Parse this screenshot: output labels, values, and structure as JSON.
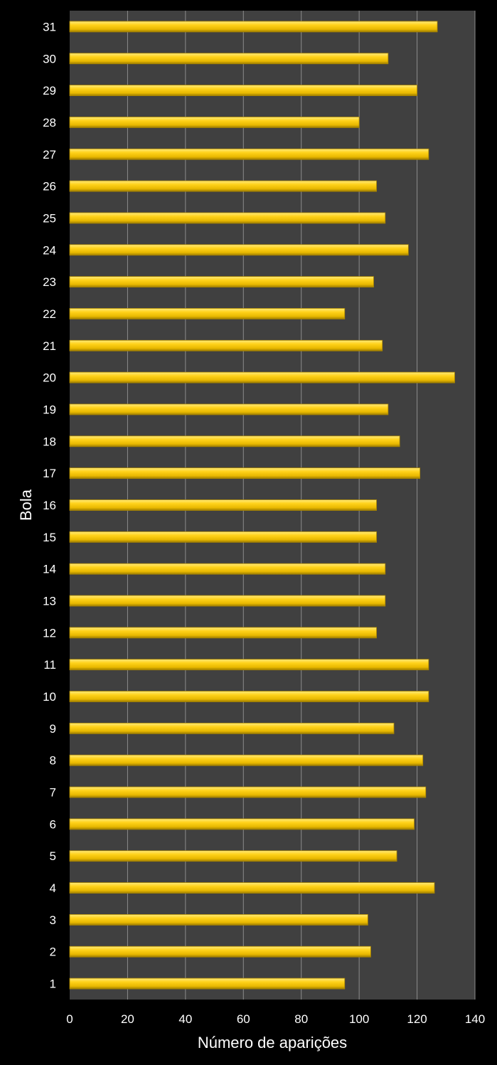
{
  "chart_data": {
    "type": "bar",
    "orientation": "horizontal",
    "categories": [
      "1",
      "2",
      "3",
      "4",
      "5",
      "6",
      "7",
      "8",
      "9",
      "10",
      "11",
      "12",
      "13",
      "14",
      "15",
      "16",
      "17",
      "18",
      "19",
      "20",
      "21",
      "22",
      "23",
      "24",
      "25",
      "26",
      "27",
      "28",
      "29",
      "30",
      "31"
    ],
    "values": [
      95,
      104,
      103,
      126,
      113,
      119,
      123,
      122,
      112,
      124,
      124,
      106,
      109,
      109,
      106,
      106,
      121,
      114,
      110,
      133,
      108,
      95,
      105,
      117,
      109,
      106,
      124,
      100,
      120,
      110,
      127
    ],
    "xlabel": "Número de aparições",
    "ylabel": "Bola",
    "xlim": [
      0,
      140
    ],
    "xticks": [
      "0",
      "20",
      "40",
      "60",
      "80",
      "100",
      "120",
      "140"
    ],
    "grid": "vertical",
    "legend": "none"
  },
  "colors": {
    "background": "#000000",
    "plot_area": "#404040",
    "bar_light": "#ffe033",
    "bar_mid": "#f5c400",
    "bar_dark": "#a98500",
    "grid": "#8c8c8c",
    "text": "#ffffff"
  }
}
